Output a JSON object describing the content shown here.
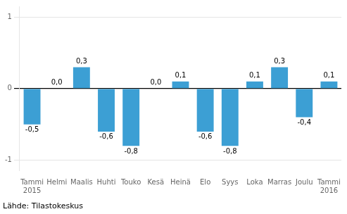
{
  "chart_data": {
    "type": "bar",
    "categories": [
      "Tammi\n2015",
      "Helmi",
      "Maalis",
      "Huhti",
      "Touko",
      "Kesä",
      "Heinä",
      "Elo",
      "Syys",
      "Loka",
      "Marras",
      "Joulu",
      "Tammi\n2016"
    ],
    "values": [
      -0.5,
      0.0,
      0.3,
      -0.6,
      -0.8,
      0.0,
      0.1,
      -0.6,
      -0.8,
      0.1,
      0.3,
      -0.4,
      0.1
    ],
    "value_labels": [
      "-0,5",
      "0,0",
      "0,3",
      "-0,6",
      "-0,8",
      "0,0",
      "0,1",
      "-0,6",
      "-0,8",
      "0,1",
      "0,3",
      "-0,4",
      "0,1"
    ],
    "data_labels": true,
    "color": "#3c9fd4",
    "ylim": [
      -1.15,
      1.15
    ],
    "yticks": [
      -1,
      0,
      1
    ],
    "grid": true,
    "annotations": [
      "Lähde: Tilastokeskus"
    ]
  }
}
